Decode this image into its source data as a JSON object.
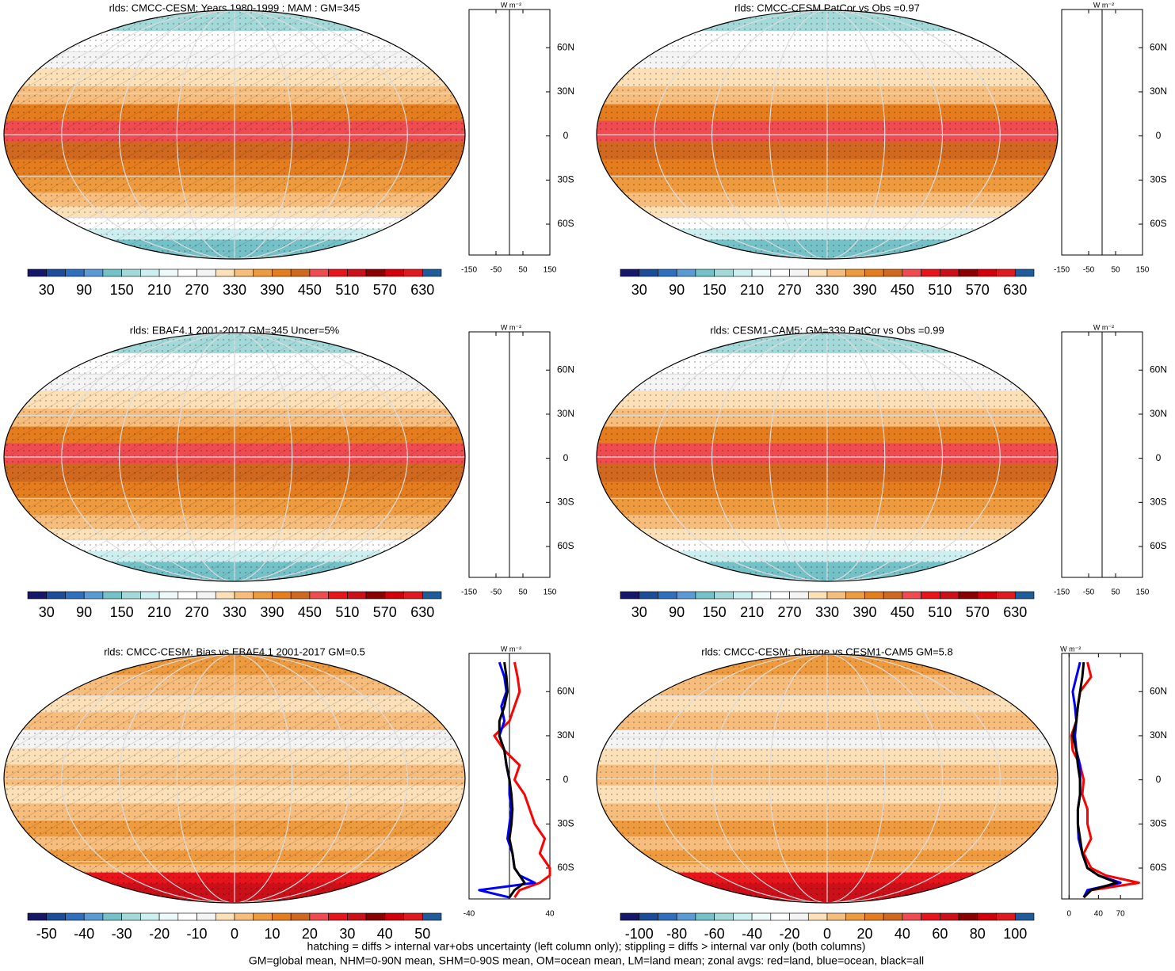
{
  "colorbar_colors": [
    "#16166b",
    "#1b4d9b",
    "#2f6fbe",
    "#5b9bd5",
    "#74c2c8",
    "#a4d9d9",
    "#cdeff0",
    "#eefafa",
    "#ffffff",
    "#f4f4f4",
    "#fbe0b8",
    "#f6bd7c",
    "#ee9a3e",
    "#e57d1f",
    "#d0691f",
    "#f14b52",
    "#e8141c",
    "#cc101a",
    "#8b0000",
    "#d2000a",
    "#e0191f",
    "#1f5c99"
  ],
  "chart_data": [
    {
      "type": "map",
      "title": "rlds: CMCC-CESM: Years 1980-1999 : MAM : GM=345",
      "colorbar_labels": [
        30,
        90,
        150,
        210,
        270,
        330,
        390,
        450,
        510,
        570,
        630
      ],
      "zonal": {
        "unit": "W m⁻²",
        "xlim": [
          -150,
          150
        ],
        "xticks": [
          -150,
          -50,
          50,
          150
        ],
        "ylim": [
          -81,
          86
        ],
        "yticks": [
          {
            "value": 60,
            "label": "60N"
          },
          {
            "value": 30,
            "label": "30N"
          },
          0,
          {
            "value": -30,
            "label": "30S"
          },
          {
            "value": -60,
            "label": "60S"
          }
        ]
      }
    },
    {
      "type": "map",
      "title": "rlds: CMCC-CESM PatCor vs Obs =0.97",
      "colorbar_labels": [
        30,
        90,
        150,
        210,
        270,
        330,
        390,
        450,
        510,
        570,
        630
      ],
      "zonal": {
        "unit": "W m⁻²",
        "xlim": [
          -150,
          150
        ],
        "xticks": [
          -150,
          -50,
          50,
          150
        ],
        "ylim": [
          -81,
          86
        ],
        "yticks": [
          {
            "value": 60,
            "label": "60N"
          },
          {
            "value": 30,
            "label": "30N"
          },
          0,
          {
            "value": -30,
            "label": "30S"
          },
          {
            "value": -60,
            "label": "60S"
          }
        ]
      }
    },
    {
      "type": "map",
      "title": "rlds: EBAF4.1 2001-2017 GM=345 Uncer=5%",
      "colorbar_labels": [
        30,
        90,
        150,
        210,
        270,
        330,
        390,
        450,
        510,
        570,
        630
      ],
      "zonal": {
        "unit": "W m⁻²",
        "xlim": [
          -150,
          150
        ],
        "xticks": [
          -150,
          -50,
          50,
          150
        ],
        "ylim": [
          -81,
          86
        ],
        "yticks": [
          {
            "value": 60,
            "label": "60N"
          },
          {
            "value": 30,
            "label": "30N"
          },
          0,
          {
            "value": -30,
            "label": "30S"
          },
          {
            "value": -60,
            "label": "60S"
          }
        ]
      }
    },
    {
      "type": "map",
      "title": "rlds: CESM1-CAM5: GM=339 PatCor vs Obs =0.99",
      "colorbar_labels": [
        30,
        90,
        150,
        210,
        270,
        330,
        390,
        450,
        510,
        570,
        630
      ],
      "zonal": {
        "unit": "W m⁻²",
        "xlim": [
          -150,
          150
        ],
        "xticks": [
          -150,
          -50,
          50,
          150
        ],
        "ylim": [
          -81,
          86
        ],
        "yticks": [
          {
            "value": 60,
            "label": "60N"
          },
          {
            "value": 30,
            "label": "30N"
          },
          0,
          {
            "value": -30,
            "label": "30S"
          },
          {
            "value": -60,
            "label": "60S"
          }
        ]
      }
    },
    {
      "type": "map",
      "title": "rlds: CMCC-CESM: Bias vs EBAF4.1 2001-2017 GM=0.5",
      "colorbar_labels": [
        -50,
        -40,
        -30,
        -20,
        -10,
        0,
        10,
        20,
        30,
        40,
        50
      ],
      "zonal": {
        "unit": "W m⁻²",
        "xlim": [
          -40,
          40
        ],
        "xticks": [
          -40,
          40
        ],
        "ylim": [
          -81,
          86
        ],
        "yticks": [
          {
            "value": 60,
            "label": "60N"
          },
          {
            "value": 30,
            "label": "30N"
          },
          0,
          {
            "value": -30,
            "label": "30S"
          },
          {
            "value": -60,
            "label": "60S"
          }
        ],
        "lat": [
          80,
          70,
          60,
          50,
          40,
          30,
          20,
          10,
          0,
          -10,
          -20,
          -30,
          -40,
          -50,
          -60,
          -65,
          -70,
          -75,
          -80
        ],
        "series": [
          {
            "color": "#ff0000",
            "values": [
              5,
              8,
              10,
              5,
              0,
              -15,
              -5,
              10,
              5,
              15,
              20,
              25,
              35,
              30,
              40,
              40,
              30,
              10,
              5
            ]
          },
          {
            "color": "#0000ff",
            "values": [
              -10,
              -5,
              -3,
              -8,
              -5,
              -10,
              -5,
              -3,
              0,
              0,
              2,
              0,
              -2,
              3,
              5,
              10,
              25,
              -30,
              0
            ]
          },
          {
            "color": "#000000",
            "values": [
              -5,
              -3,
              -2,
              -5,
              -10,
              -10,
              -5,
              -3,
              0,
              2,
              3,
              2,
              0,
              3,
              5,
              10,
              15,
              5,
              0
            ]
          }
        ]
      }
    },
    {
      "type": "map",
      "title": "rlds: CMCC-CESM: Change vs CESM1-CAM5 GM=5.8",
      "colorbar_labels": [
        -100,
        -80,
        -60,
        -40,
        -20,
        0,
        20,
        40,
        60,
        80,
        100
      ],
      "zonal": {
        "unit": "W m⁻²",
        "xlim": [
          -10,
          100
        ],
        "xticks": [
          0,
          40,
          70
        ],
        "ylim": [
          -81,
          86
        ],
        "yticks": [
          {
            "value": 60,
            "label": "60N"
          },
          {
            "value": 30,
            "label": "30N"
          },
          0,
          {
            "value": -30,
            "label": "30S"
          },
          {
            "value": -60,
            "label": "60S"
          }
        ],
        "lat": [
          80,
          70,
          60,
          50,
          40,
          30,
          20,
          10,
          0,
          -10,
          -20,
          -30,
          -40,
          -50,
          -60,
          -65,
          -70,
          -75,
          -80
        ],
        "series": [
          {
            "color": "#ff0000",
            "values": [
              25,
              30,
              15,
              12,
              10,
              3,
              5,
              15,
              20,
              18,
              25,
              25,
              30,
              20,
              30,
              50,
              95,
              30,
              20
            ]
          },
          {
            "color": "#0000ff",
            "values": [
              15,
              10,
              5,
              8,
              10,
              8,
              10,
              15,
              15,
              15,
              12,
              12,
              13,
              18,
              25,
              40,
              70,
              25,
              20
            ]
          },
          {
            "color": "#000000",
            "values": [
              20,
              18,
              15,
              12,
              10,
              5,
              10,
              12,
              15,
              15,
              12,
              12,
              15,
              18,
              25,
              40,
              65,
              30,
              20
            ]
          }
        ]
      }
    }
  ],
  "notes": [
    "hatching = diffs > internal var+obs uncertainty (left column only); stippling = diffs > internal var only (both columns)",
    "GM=global mean, NHM=0-90N mean, SHM=0-90S mean, OM=ocean mean, LM=land mean; zonal avgs: red=land, blue=ocean, black=all"
  ]
}
